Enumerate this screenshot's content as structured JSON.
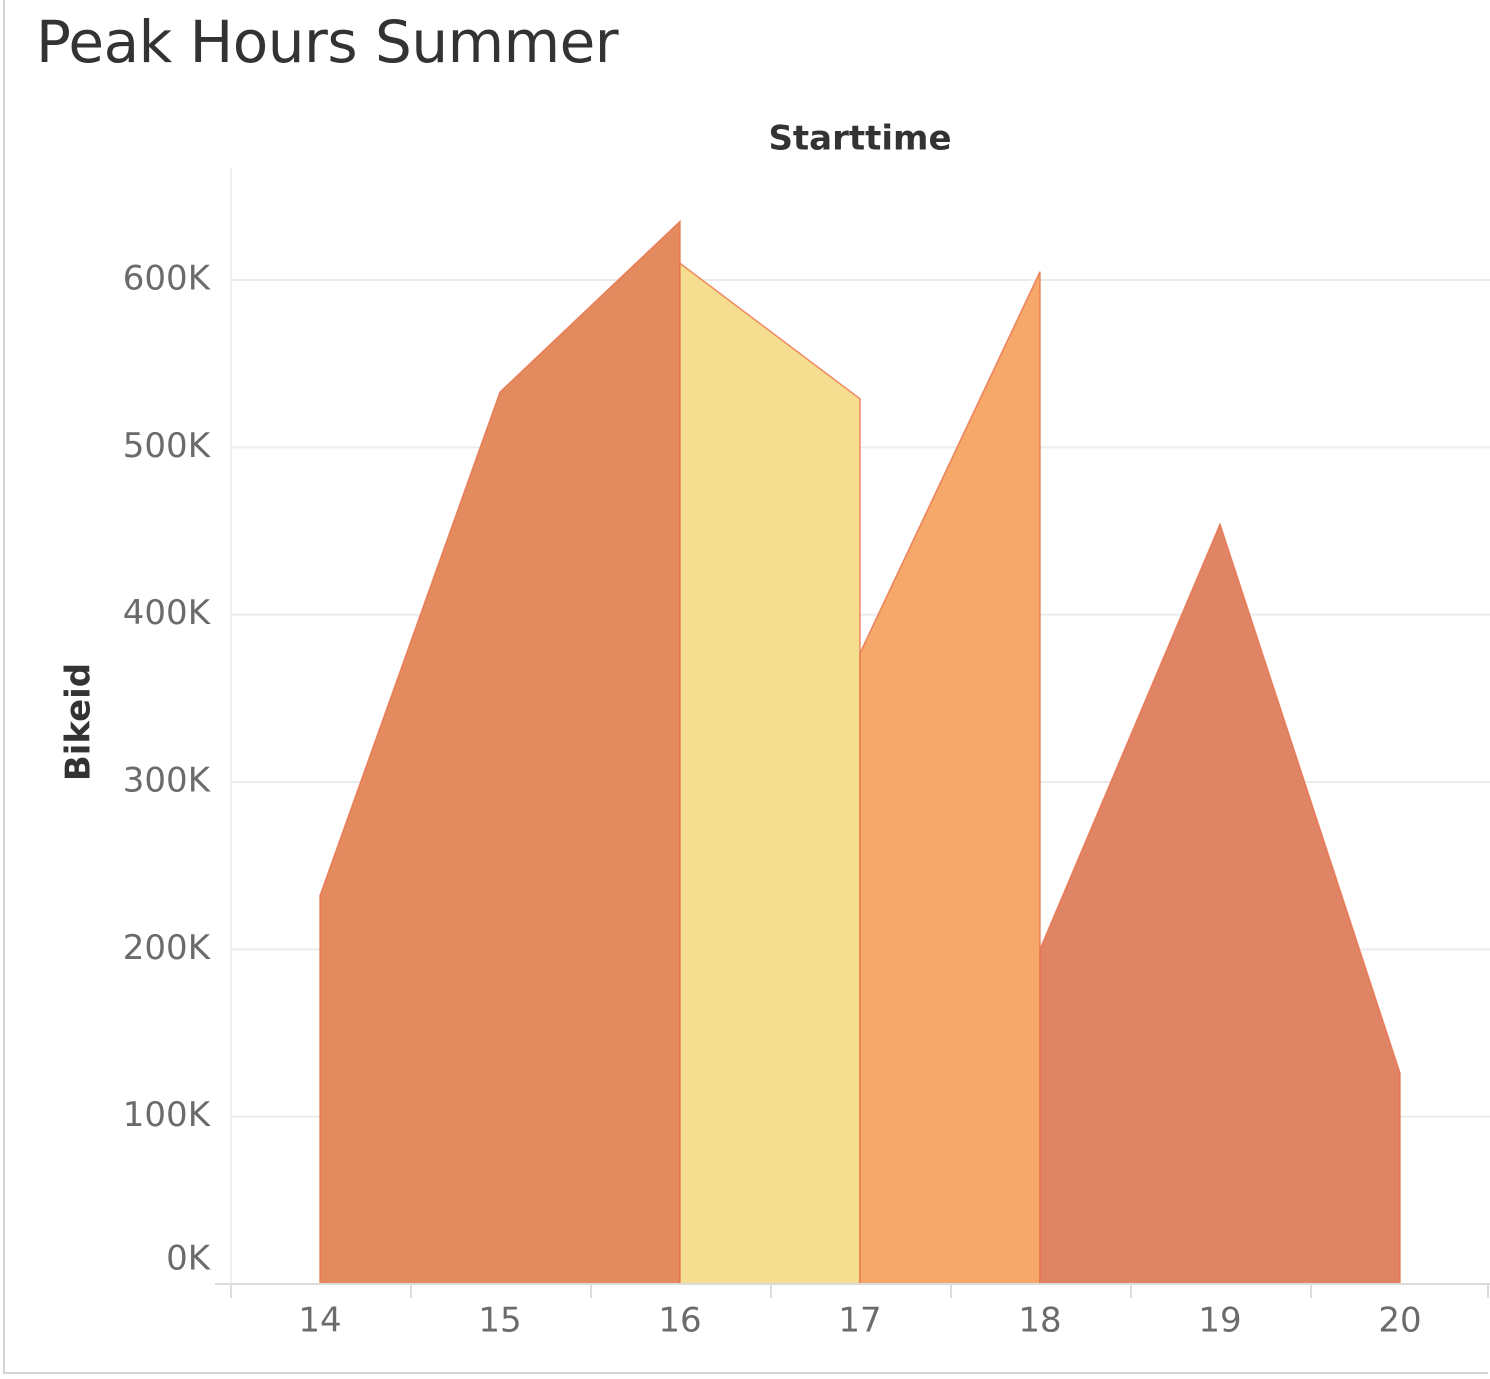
{
  "title": "Peak Hours Summer",
  "chart_data": {
    "type": "area",
    "title": "Peak Hours Summer",
    "xlabel": "Starttime",
    "ylabel": "Bikeid",
    "x_ticks": [
      "14",
      "15",
      "16",
      "17",
      "18",
      "19",
      "20"
    ],
    "y_ticks": [
      "0K",
      "100K",
      "200K",
      "300K",
      "400K",
      "500K",
      "600K"
    ],
    "ylim": [
      0,
      665000
    ],
    "xlim": [
      13.5,
      20.5
    ],
    "grid": true,
    "segments": [
      {
        "points": [
          [
            14,
            232000
          ],
          [
            15,
            533000
          ],
          [
            16,
            635000
          ]
        ],
        "color": "#e48a5f"
      },
      {
        "points": [
          [
            16,
            610000
          ],
          [
            17,
            529000
          ]
        ],
        "color": "#f6de90"
      },
      {
        "points": [
          [
            17,
            377000
          ],
          [
            18,
            605000
          ]
        ],
        "color": "#f5a869"
      },
      {
        "points": [
          [
            18,
            200000
          ],
          [
            19,
            454000
          ],
          [
            20,
            126000
          ]
        ],
        "color": "#e08466"
      }
    ],
    "colors": {
      "grid": "#ececec",
      "tick_text": "#6b6b6b",
      "axis_title": "#333333",
      "outline": "#e8714a"
    }
  }
}
